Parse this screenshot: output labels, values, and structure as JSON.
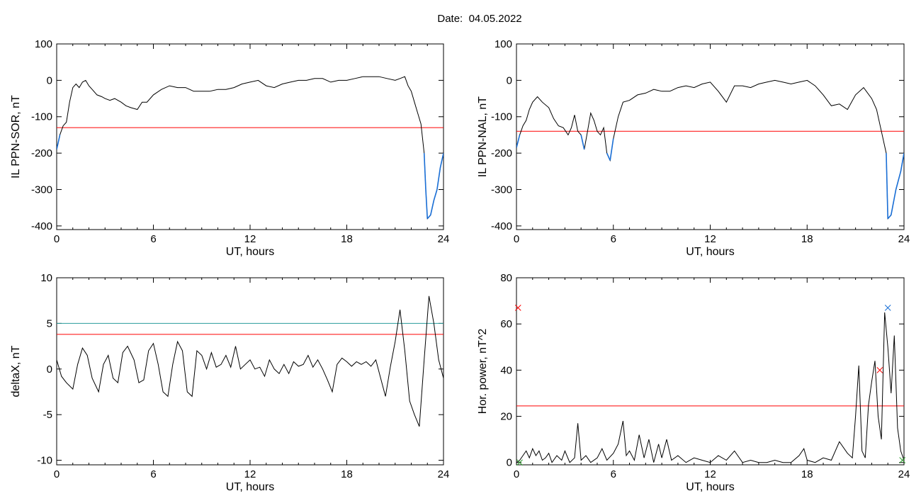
{
  "header": {
    "date_label": "Date:",
    "date_value": "04.05.2022"
  },
  "colors": {
    "trace": "#000000",
    "threshold": "#ff0000",
    "highlight": "#1a6fd6",
    "cyan_threshold": "#2a9d9d",
    "marker_green": "#2a9d2a"
  },
  "chart_data": [
    {
      "id": "sor",
      "type": "line",
      "xlabel": "UT, hours",
      "ylabel": "IL PPN-SOR, nT",
      "xlim": [
        0,
        24
      ],
      "ylim": [
        -410,
        100
      ],
      "xticks": [
        0,
        6,
        12,
        18,
        24
      ],
      "yticks": [
        100,
        0,
        -100,
        -200,
        -300,
        -400
      ],
      "grid": false,
      "thresholds": [
        {
          "y": -130,
          "color": "#ff0000"
        }
      ],
      "highlight_below": -130,
      "x": [
        0,
        0.2,
        0.4,
        0.6,
        0.8,
        1.0,
        1.2,
        1.4,
        1.6,
        1.8,
        2.0,
        2.2,
        2.5,
        2.8,
        3.0,
        3.3,
        3.6,
        4.0,
        4.3,
        4.6,
        5.0,
        5.3,
        5.6,
        6.0,
        6.5,
        7.0,
        7.5,
        8.0,
        8.5,
        9.0,
        9.5,
        10.0,
        10.5,
        11.0,
        11.5,
        12.0,
        12.5,
        13.0,
        13.5,
        14.0,
        14.5,
        15.0,
        15.5,
        16.0,
        16.5,
        17.0,
        17.5,
        18.0,
        18.5,
        19.0,
        19.5,
        20.0,
        20.5,
        21.0,
        21.3,
        21.6,
        21.8,
        22.0,
        22.2,
        22.4,
        22.6,
        22.8,
        22.9,
        23.0,
        23.2,
        23.4,
        23.6,
        23.8,
        24.0
      ],
      "y": [
        -190,
        -150,
        -125,
        -115,
        -60,
        -20,
        -10,
        -20,
        -5,
        0,
        -15,
        -25,
        -40,
        -45,
        -50,
        -55,
        -50,
        -60,
        -70,
        -75,
        -80,
        -60,
        -60,
        -40,
        -25,
        -15,
        -20,
        -20,
        -30,
        -30,
        -30,
        -25,
        -25,
        -20,
        -10,
        -5,
        0,
        -15,
        -20,
        -10,
        -5,
        0,
        0,
        5,
        5,
        -5,
        0,
        0,
        5,
        10,
        10,
        10,
        5,
        0,
        5,
        10,
        -15,
        -30,
        -60,
        -90,
        -120,
        -200,
        -300,
        -380,
        -370,
        -330,
        -300,
        -240,
        -200
      ]
    },
    {
      "id": "nal",
      "type": "line",
      "xlabel": "UT, hours",
      "ylabel": "IL PPN-NAL, nT",
      "xlim": [
        0,
        24
      ],
      "ylim": [
        -410,
        100
      ],
      "xticks": [
        0,
        6,
        12,
        18,
        24
      ],
      "yticks": [
        100,
        0,
        -100,
        -200,
        -300,
        -400
      ],
      "grid": false,
      "thresholds": [
        {
          "y": -140,
          "color": "#ff0000"
        }
      ],
      "highlight_below": -140,
      "x": [
        0,
        0.2,
        0.4,
        0.6,
        0.8,
        1.0,
        1.3,
        1.6,
        2.0,
        2.3,
        2.6,
        2.9,
        3.2,
        3.4,
        3.6,
        3.8,
        4.0,
        4.2,
        4.4,
        4.6,
        4.8,
        5.0,
        5.2,
        5.4,
        5.6,
        5.8,
        6.0,
        6.3,
        6.6,
        7.0,
        7.5,
        8.0,
        8.5,
        9.0,
        9.5,
        10.0,
        10.5,
        11.0,
        11.5,
        12.0,
        12.5,
        13.0,
        13.5,
        14.0,
        14.5,
        15.0,
        15.5,
        16.0,
        16.5,
        17.0,
        17.5,
        18.0,
        18.5,
        19.0,
        19.5,
        20.0,
        20.5,
        21.0,
        21.5,
        22.0,
        22.3,
        22.6,
        22.9,
        23.0,
        23.2,
        23.5,
        23.8,
        24.0
      ],
      "y": [
        -185,
        -150,
        -125,
        -110,
        -80,
        -60,
        -45,
        -60,
        -75,
        -105,
        -125,
        -130,
        -150,
        -130,
        -95,
        -140,
        -150,
        -190,
        -140,
        -90,
        -110,
        -140,
        -150,
        -130,
        -200,
        -220,
        -160,
        -100,
        -60,
        -55,
        -40,
        -35,
        -25,
        -30,
        -30,
        -20,
        -15,
        -20,
        -10,
        -5,
        -30,
        -60,
        -15,
        -15,
        -20,
        -10,
        -5,
        0,
        -5,
        -10,
        -5,
        0,
        -15,
        -40,
        -70,
        -65,
        -80,
        -40,
        -20,
        -50,
        -80,
        -140,
        -200,
        -380,
        -370,
        -300,
        -250,
        -200
      ]
    },
    {
      "id": "deltax",
      "type": "line",
      "xlabel": "UT, hours",
      "ylabel": "deltaX, nT",
      "xlim": [
        0,
        24
      ],
      "ylim": [
        -10.5,
        10
      ],
      "xticks": [
        0,
        6,
        12,
        18,
        24
      ],
      "yticks": [
        10,
        5,
        0,
        -5,
        -10
      ],
      "grid": false,
      "thresholds": [
        {
          "y": 5,
          "color": "#2a9d9d"
        },
        {
          "y": 3.8,
          "color": "#ff0000"
        }
      ],
      "x": [
        0,
        0.3,
        0.6,
        1.0,
        1.3,
        1.6,
        1.9,
        2.2,
        2.6,
        2.9,
        3.2,
        3.5,
        3.8,
        4.1,
        4.4,
        4.8,
        5.1,
        5.4,
        5.7,
        6.0,
        6.3,
        6.6,
        6.9,
        7.2,
        7.5,
        7.8,
        8.1,
        8.4,
        8.7,
        9.0,
        9.3,
        9.6,
        9.9,
        10.2,
        10.5,
        10.8,
        11.1,
        11.4,
        11.7,
        12.0,
        12.3,
        12.6,
        12.9,
        13.2,
        13.5,
        13.8,
        14.1,
        14.4,
        14.7,
        15.0,
        15.3,
        15.6,
        15.9,
        16.2,
        16.5,
        16.8,
        17.1,
        17.4,
        17.7,
        18.0,
        18.3,
        18.6,
        18.9,
        19.2,
        19.5,
        19.8,
        20.1,
        20.4,
        20.7,
        21.0,
        21.3,
        21.6,
        21.9,
        22.2,
        22.5,
        22.8,
        23.1,
        23.4,
        23.7,
        24.0
      ],
      "y": [
        1,
        -0.8,
        -1.5,
        -2.2,
        0.5,
        2.3,
        1.5,
        -1.0,
        -2.5,
        0.5,
        1.5,
        -1.0,
        -1.5,
        1.8,
        2.5,
        1.0,
        -1.5,
        -1.2,
        2.0,
        2.8,
        0.5,
        -2.5,
        -3.0,
        0.5,
        3.0,
        2.0,
        -2.5,
        -3.0,
        2.0,
        1.5,
        0,
        1.8,
        0.2,
        0.5,
        1.5,
        0.2,
        2.5,
        0,
        0.5,
        1.0,
        0,
        0.2,
        -0.8,
        1.0,
        0,
        -0.5,
        0.5,
        -0.5,
        0.8,
        0.3,
        0.5,
        1.5,
        0.2,
        1.0,
        0,
        -1.2,
        -2.5,
        0.5,
        1.2,
        0.8,
        0.3,
        0.8,
        0.5,
        0.8,
        0.3,
        1.0,
        -1.0,
        -3.0,
        0.2,
        3.0,
        6.5,
        2.0,
        -3.5,
        -5.0,
        -6.3,
        1.0,
        8.0,
        5.0,
        1.0,
        -1.0
      ]
    },
    {
      "id": "power",
      "type": "line",
      "xlabel": "UT, hours",
      "ylabel": "Hor. power, nT^2",
      "xlim": [
        0,
        24
      ],
      "ylim": [
        -1,
        80
      ],
      "xticks": [
        0,
        6,
        12,
        18,
        24
      ],
      "yticks": [
        80,
        60,
        40,
        20,
        0
      ],
      "grid": false,
      "thresholds": [
        {
          "y": 24.5,
          "color": "#ff0000"
        }
      ],
      "markers": [
        {
          "x": 0.1,
          "y": 67,
          "symbol": "x",
          "color": "#ff0000"
        },
        {
          "x": 22.5,
          "y": 40,
          "symbol": "x",
          "color": "#ff0000"
        },
        {
          "x": 23.0,
          "y": 67,
          "symbol": "x",
          "color": "#1a6fd6"
        },
        {
          "x": 0.2,
          "y": 0,
          "symbol": "x",
          "color": "#2a9d2a"
        },
        {
          "x": 23.9,
          "y": 1,
          "symbol": "x",
          "color": "#2a9d2a"
        }
      ],
      "x": [
        0,
        0.2,
        0.4,
        0.6,
        0.8,
        1.0,
        1.2,
        1.4,
        1.6,
        1.8,
        2.0,
        2.2,
        2.5,
        2.8,
        3.0,
        3.3,
        3.6,
        3.8,
        4.0,
        4.3,
        4.6,
        5.0,
        5.3,
        5.6,
        6.0,
        6.3,
        6.6,
        6.8,
        7.0,
        7.3,
        7.6,
        7.9,
        8.2,
        8.5,
        8.8,
        9.0,
        9.3,
        9.6,
        10.0,
        10.5,
        11.0,
        11.5,
        12.0,
        12.5,
        13.0,
        13.5,
        14.0,
        14.5,
        15.0,
        15.5,
        16.0,
        16.5,
        17.0,
        17.5,
        17.8,
        18.0,
        18.5,
        19.0,
        19.5,
        20.0,
        20.5,
        20.8,
        21.0,
        21.2,
        21.4,
        21.6,
        21.8,
        22.0,
        22.2,
        22.4,
        22.6,
        22.8,
        23.0,
        23.2,
        23.4,
        23.6,
        23.8,
        24.0
      ],
      "y": [
        0,
        1,
        3,
        5,
        2,
        6,
        3,
        5,
        1,
        2,
        4,
        0,
        3,
        1,
        5,
        0,
        2,
        17,
        1,
        3,
        0,
        2,
        6,
        1,
        4,
        8,
        18,
        3,
        5,
        1,
        12,
        2,
        10,
        0,
        8,
        2,
        10,
        1,
        3,
        0,
        2,
        1,
        0,
        3,
        1,
        5,
        0,
        1,
        0,
        0,
        1,
        0,
        0,
        3,
        6,
        1,
        0,
        2,
        1,
        9,
        4,
        2,
        20,
        42,
        5,
        2,
        25,
        35,
        44,
        20,
        10,
        65,
        50,
        30,
        55,
        15,
        5,
        1
      ]
    }
  ]
}
